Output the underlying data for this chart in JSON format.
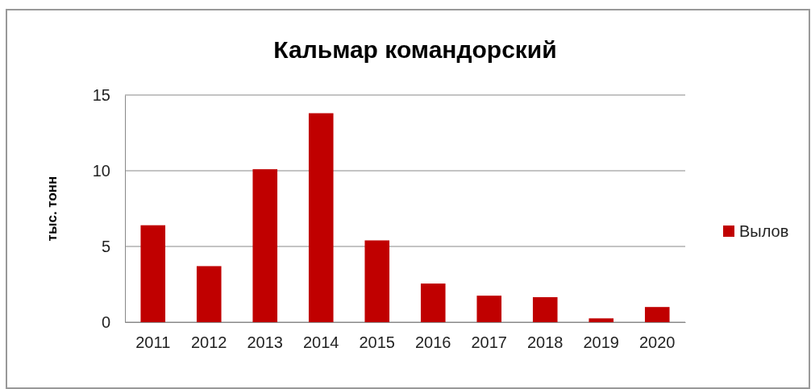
{
  "chart_data": {
    "type": "bar",
    "title": "Кальмар командорский",
    "ylabel": "тыс. тонн",
    "categories": [
      "2011",
      "2012",
      "2013",
      "2014",
      "2015",
      "2016",
      "2017",
      "2018",
      "2019",
      "2020"
    ],
    "series": [
      {
        "name": "Вылов",
        "color": "#c00000",
        "values": [
          6.4,
          3.7,
          10.1,
          13.8,
          5.4,
          2.55,
          1.75,
          1.65,
          0.25,
          1.0
        ]
      }
    ],
    "ylim": [
      0,
      15
    ],
    "yticks": [
      0,
      5,
      10,
      15
    ],
    "grid": "y",
    "legend": "right"
  }
}
